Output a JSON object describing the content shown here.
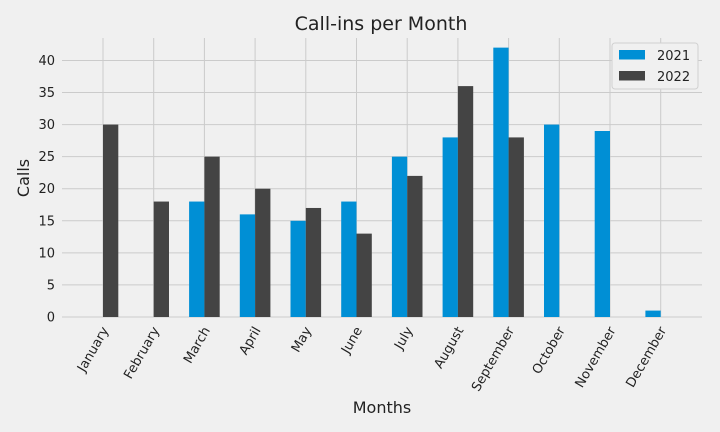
{
  "chart_data": {
    "type": "bar",
    "title": "Call-ins per Month",
    "xlabel": "Months",
    "ylabel": "Calls",
    "categories": [
      "January",
      "February",
      "March",
      "April",
      "May",
      "June",
      "July",
      "August",
      "September",
      "October",
      "November",
      "December"
    ],
    "series": [
      {
        "name": "2021",
        "color": "#008fd5",
        "values": [
          0,
          0,
          18,
          16,
          15,
          18,
          25,
          28,
          42,
          30,
          29,
          1
        ]
      },
      {
        "name": "2022",
        "color": "#444444",
        "values": [
          30,
          18,
          25,
          20,
          17,
          13,
          22,
          36,
          28,
          0,
          0,
          0
        ]
      }
    ],
    "ylim": [
      0,
      43.5
    ],
    "yticks": [
      0,
      5,
      10,
      15,
      20,
      25,
      30,
      35,
      40
    ],
    "grid": true,
    "legend": "top-right",
    "x_tick_rotation_deg": 60,
    "background": "#f0f0f0"
  }
}
